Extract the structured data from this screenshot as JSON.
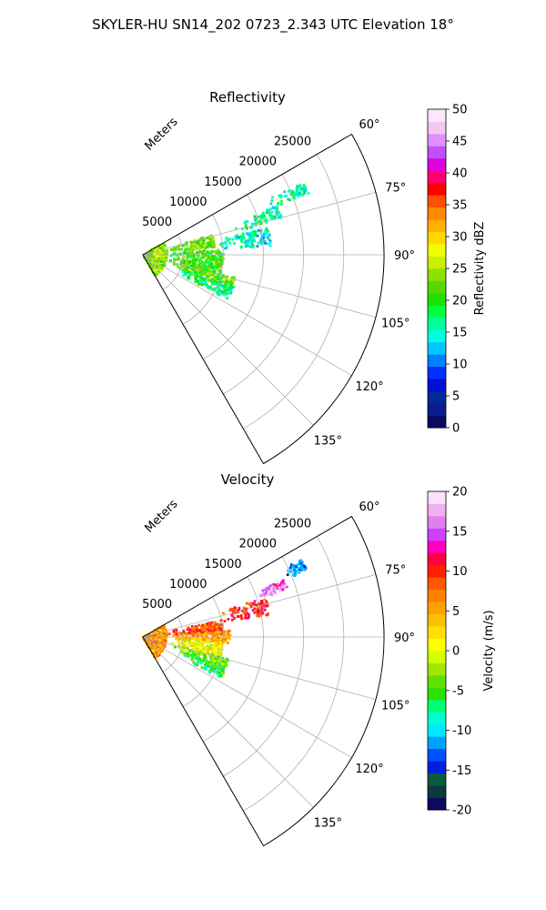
{
  "figure_title": "SKYLER-HU  SN14_202  0723_2.343 UTC Elevation 18°",
  "range_axis_label": "Meters",
  "colors": {
    "grid": "#b0b0b0",
    "frame": "#000000",
    "reflectivity_colormap": [
      "#0a0a60",
      "#0a1e8c",
      "#002a96",
      "#0010d0",
      "#0030ff",
      "#0080ff",
      "#00c8ff",
      "#00ffe0",
      "#00ff9a",
      "#00ff40",
      "#20e000",
      "#58d800",
      "#8ee000",
      "#c8f000",
      "#f0ff00",
      "#ffd800",
      "#ffb000",
      "#ff8a00",
      "#ff5000",
      "#ff0000",
      "#ff0070",
      "#e000e0",
      "#c050ff",
      "#e090ff",
      "#f4c8f4",
      "#fce8fc"
    ],
    "velocity_colormap": [
      "#0a0a60",
      "#0a3a3a",
      "#0a5a3a",
      "#0020e0",
      "#0050ff",
      "#00a0ff",
      "#00e8ff",
      "#00ffd0",
      "#00ff70",
      "#30e000",
      "#60e000",
      "#a0e800",
      "#d0ff00",
      "#ffff00",
      "#ffe000",
      "#ffc000",
      "#ffa000",
      "#ff8000",
      "#ff5800",
      "#ff2000",
      "#ff0040",
      "#ff00c0",
      "#d040ff",
      "#e080f0",
      "#f0b0f0",
      "#fae0fa"
    ]
  },
  "chart_data": [
    {
      "type": "heatmap",
      "panel": "reflectivity",
      "title": "Reflectivity",
      "projection": "polar-sector",
      "azimuth_range_deg": [
        60,
        150
      ],
      "azimuth_ticks": [
        "60°",
        "75°",
        "90°",
        "105°",
        "120°",
        "135°"
      ],
      "azimuth_tick_values": [
        60,
        75,
        90,
        105,
        120,
        135
      ],
      "range_m": [
        0,
        30000
      ],
      "range_ticks": [
        "5000",
        "10000",
        "15000",
        "20000",
        "25000"
      ],
      "range_tick_values": [
        5000,
        10000,
        15000,
        20000,
        25000
      ],
      "grid": true,
      "colorbar": {
        "label": "Reflectivity dBZ",
        "vmin": 0,
        "vmax": 50,
        "ticks": [
          "0",
          "5",
          "10",
          "15",
          "20",
          "25",
          "30",
          "35",
          "40",
          "45",
          "50"
        ],
        "tick_values": [
          0,
          5,
          10,
          15,
          20,
          25,
          30,
          35,
          40,
          45,
          50
        ]
      },
      "echo_regions": [
        {
          "az": [
            66,
            70
          ],
          "r": [
            17000,
            22000
          ],
          "value": 16
        },
        {
          "az": [
            70,
            76
          ],
          "r": [
            12000,
            18000
          ],
          "value": 16
        },
        {
          "az": [
            74,
            84
          ],
          "r": [
            3000,
            9000
          ],
          "value": 22
        },
        {
          "az": [
            78,
            86
          ],
          "r": [
            9000,
            16000
          ],
          "value": 15
        },
        {
          "az": [
            86,
            96
          ],
          "r": [
            3000,
            10000
          ],
          "value": 21
        },
        {
          "az": [
            96,
            106
          ],
          "r": [
            3000,
            10000
          ],
          "value": 21
        },
        {
          "az": [
            104,
            112
          ],
          "r": [
            4000,
            12000
          ],
          "value": 22
        },
        {
          "az": [
            110,
            118
          ],
          "r": [
            5000,
            12000
          ],
          "value": 17
        },
        {
          "az": [
            60,
            150
          ],
          "r": [
            0,
            3000
          ],
          "value": 24
        }
      ]
    },
    {
      "type": "heatmap",
      "panel": "velocity",
      "title": "Velocity",
      "projection": "polar-sector",
      "azimuth_range_deg": [
        60,
        150
      ],
      "azimuth_ticks": [
        "60°",
        "75°",
        "90°",
        "105°",
        "120°",
        "135°"
      ],
      "azimuth_tick_values": [
        60,
        75,
        90,
        105,
        120,
        135
      ],
      "range_m": [
        0,
        30000
      ],
      "range_ticks": [
        "5000",
        "10000",
        "15000",
        "20000",
        "25000"
      ],
      "range_tick_values": [
        5000,
        10000,
        15000,
        20000,
        25000
      ],
      "grid": true,
      "colorbar": {
        "label": "Velocity (m/s)",
        "vmin": -20,
        "vmax": 20,
        "ticks": [
          "-20",
          "-15",
          "-10",
          "-5",
          "0",
          "5",
          "10",
          "15",
          "20"
        ],
        "tick_values": [
          -20,
          -15,
          -10,
          -5,
          0,
          5,
          10,
          15,
          20
        ]
      },
      "echo_regions": [
        {
          "az": [
            64,
            68
          ],
          "r": [
            19000,
            22000
          ],
          "value": -12
        },
        {
          "az": [
            68,
            72
          ],
          "r": [
            15000,
            19000
          ],
          "value": 15
        },
        {
          "az": [
            72,
            80
          ],
          "r": [
            10000,
            16000
          ],
          "value": 10
        },
        {
          "az": [
            78,
            88
          ],
          "r": [
            3000,
            10000
          ],
          "value": 9
        },
        {
          "az": [
            86,
            94
          ],
          "r": [
            3000,
            11000
          ],
          "value": 5
        },
        {
          "az": [
            94,
            104
          ],
          "r": [
            3000,
            10000
          ],
          "value": 1
        },
        {
          "az": [
            104,
            112
          ],
          "r": [
            4000,
            11000
          ],
          "value": -3
        },
        {
          "az": [
            110,
            118
          ],
          "r": [
            5000,
            11000
          ],
          "value": -6
        },
        {
          "az": [
            60,
            150
          ],
          "r": [
            0,
            3000
          ],
          "value": 6
        }
      ]
    }
  ]
}
